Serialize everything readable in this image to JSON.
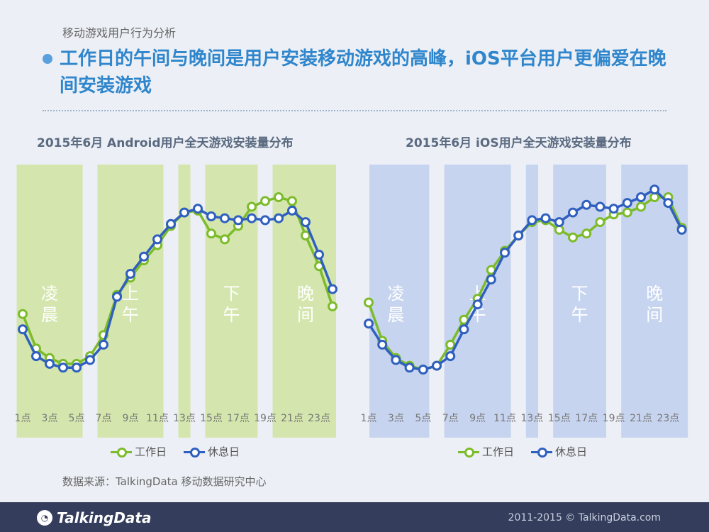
{
  "header": {
    "subtitle": "移动游戏用户行为分析",
    "headline": "工作日的午间与晚间是用户安装移动游戏的高峰，iOS平台用户更偏爱在晚间安装游戏"
  },
  "charts": [
    {
      "title": "2015年6月 Android用户全天游戏安装量分布"
    },
    {
      "title": "2015年6月 iOS用户全天游戏安装量分布"
    }
  ],
  "colors": {
    "workday": "#7cbb2a",
    "rest": "#2f5fbf",
    "android_band": "#d4e6ad",
    "ios_band": "#c7d4ef"
  },
  "bands": [
    {
      "label": "凌晨",
      "from": 0.5,
      "to": 5.5
    },
    {
      "label": "上午",
      "from": 6.5,
      "to": 11.5
    },
    {
      "label": "",
      "from": 12.5,
      "to": 13.5
    },
    {
      "label": "下午",
      "from": 14.5,
      "to": 18.5
    },
    {
      "label": "晚间",
      "from": 19.5,
      "to": 24.5
    }
  ],
  "legend": {
    "workday": "工作日",
    "rest": "休息日"
  },
  "source": "数据来源：TalkingData 移动数据研究中心",
  "footer": {
    "logo": "TalkingData",
    "copyright": "2011-2015 © TalkingData.com"
  },
  "chart_data": [
    {
      "type": "line",
      "title": "2015年6月 Android用户全天游戏安装量分布",
      "x": [
        1,
        2,
        3,
        4,
        5,
        6,
        7,
        8,
        9,
        10,
        11,
        12,
        13,
        14,
        15,
        16,
        17,
        18,
        19,
        20,
        21,
        22,
        23,
        24
      ],
      "xticks": [
        "1点",
        "3点",
        "5点",
        "7点",
        "9点",
        "11点",
        "13点",
        "15点",
        "17点",
        "19点",
        "21点",
        "23点"
      ],
      "xtick_positions": [
        1,
        3,
        5,
        7,
        9,
        11,
        13,
        15,
        17,
        19,
        21,
        23
      ],
      "ylim": [
        0,
        100
      ],
      "series": [
        {
          "name": "工作日",
          "values": [
            39,
            21,
            16,
            13,
            13,
            17,
            28,
            49,
            58,
            67,
            75,
            85,
            92,
            93,
            81,
            78,
            85,
            95,
            98,
            100,
            98,
            80,
            64,
            43
          ]
        },
        {
          "name": "休息日",
          "values": [
            31,
            17,
            13,
            11,
            11,
            15,
            23,
            48,
            60,
            69,
            78,
            86,
            92,
            94,
            90,
            89,
            88,
            89,
            88,
            89,
            93,
            87,
            70,
            52
          ]
        }
      ]
    },
    {
      "type": "line",
      "title": "2015年6月 iOS用户全天游戏安装量分布",
      "x": [
        1,
        2,
        3,
        4,
        5,
        6,
        7,
        8,
        9,
        10,
        11,
        12,
        13,
        14,
        15,
        16,
        17,
        18,
        19,
        20,
        21,
        22,
        23,
        24
      ],
      "xticks": [
        "1点",
        "3点",
        "5点",
        "7点",
        "9点",
        "11点",
        "13点",
        "15点",
        "17点",
        "19点",
        "21点",
        "23点"
      ],
      "xtick_positions": [
        1,
        3,
        5,
        7,
        9,
        11,
        13,
        15,
        17,
        19,
        21,
        23
      ],
      "ylim": [
        0,
        100
      ],
      "series": [
        {
          "name": "工作日",
          "values": [
            45,
            25,
            16,
            12,
            10,
            12,
            23,
            36,
            47,
            62,
            72,
            80,
            87,
            88,
            83,
            79,
            81,
            87,
            91,
            92,
            95,
            100,
            100,
            84
          ]
        },
        {
          "name": "休息日",
          "values": [
            34,
            23,
            15,
            11,
            10,
            12,
            17,
            31,
            44,
            57,
            71,
            80,
            88,
            89,
            87,
            92,
            96,
            95,
            94,
            97,
            100,
            104,
            97,
            83
          ]
        }
      ]
    }
  ]
}
